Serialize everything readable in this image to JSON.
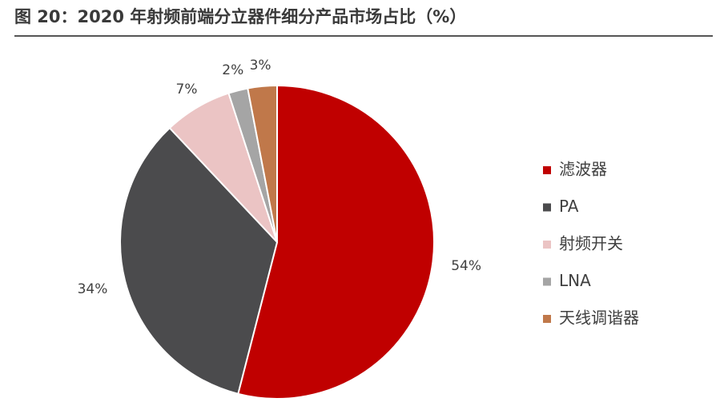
{
  "chart_data": {
    "type": "pie",
    "title": "图 20：2020 年射频前端分立器件细分产品市场占比（%）",
    "categories": [
      "滤波器",
      "PA",
      "射频开关",
      "LNA",
      "天线调谐器"
    ],
    "values": [
      54,
      34,
      7,
      2,
      3
    ],
    "value_labels": [
      "54%",
      "34%",
      "7%",
      "2%",
      "3%"
    ],
    "colors": [
      "#c00000",
      "#4b4b4d",
      "#ebc4c4",
      "#a5a5a5",
      "#c0784a"
    ],
    "legend": "right"
  }
}
